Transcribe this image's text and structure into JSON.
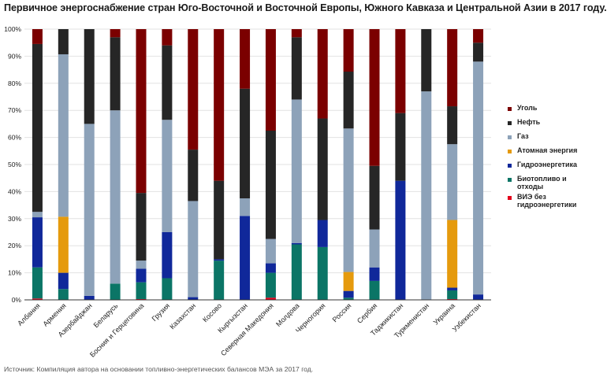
{
  "title": "Первичное энергоснабжение стран Юго-Восточной и Восточной Европы, Южного Кавказа и Центральной Азии в 2017 году.",
  "source": "Источник: Компиляция автора на основании топливно-энергетических балансов МЭА за 2017 год.",
  "colors": {
    "coal": "#7b0000",
    "oil": "#262626",
    "gas": "#8da2b9",
    "nuclear": "#e59a0d",
    "hydro": "#10289a",
    "bio": "#0b7566",
    "renew": "#e3001b"
  },
  "legend": [
    {
      "key": "coal",
      "label": "Уголь"
    },
    {
      "key": "oil",
      "label": "Нефть"
    },
    {
      "key": "gas",
      "label": "Газ"
    },
    {
      "key": "nuclear",
      "label": "Атомная энергия"
    },
    {
      "key": "hydro",
      "label": "Гидроэнергетика"
    },
    {
      "key": "bio",
      "label": "Биотопливо и отходы"
    },
    {
      "key": "renew",
      "label": "ВИЭ без гидроэнергетики"
    }
  ],
  "chart_data": {
    "type": "bar",
    "stacked": true,
    "ylim": [
      0,
      100
    ],
    "yticks": [
      "0%",
      "10%",
      "20%",
      "30%",
      "40%",
      "50%",
      "60%",
      "70%",
      "80%",
      "90%",
      "100%"
    ],
    "categories": [
      "Албания",
      "Армения",
      "Азербайджан",
      "Беларусь",
      "Босния и Герцеговина",
      "Грузия",
      "Казахстан",
      "Косово",
      "Кыргызстан",
      "Северная Македония",
      "Молдова",
      "Черногория",
      "Россия",
      "Сербия",
      "Таджикистан",
      "Туркменистан",
      "Украина",
      "Узбекистан"
    ],
    "series": [
      {
        "key": "renew",
        "name": "ВИЭ без гидроэнергетики",
        "values": [
          0.5,
          0,
          0,
          0,
          0.3,
          0,
          0,
          0,
          0,
          0.8,
          0,
          0,
          0,
          0,
          0,
          0,
          0.3,
          0
        ]
      },
      {
        "key": "bio",
        "name": "Биотопливо и отходы",
        "values": [
          11.5,
          4,
          0,
          6,
          6.2,
          8,
          0,
          14.5,
          0,
          9.2,
          20.5,
          19.5,
          0.8,
          7,
          0,
          0,
          3.2,
          0
        ]
      },
      {
        "key": "hydro",
        "name": "Гидроэнергетика",
        "values": [
          18.5,
          6,
          1.5,
          0,
          5,
          17,
          1,
          0.5,
          31,
          3.5,
          0.5,
          10,
          2.5,
          5,
          44,
          0,
          1,
          2
        ]
      },
      {
        "key": "nuclear",
        "name": "Атомная энергия",
        "values": [
          0,
          20.7,
          0,
          0,
          0,
          0,
          0,
          0,
          0,
          0,
          0,
          0,
          7,
          0,
          0,
          0,
          25,
          0
        ]
      },
      {
        "key": "gas",
        "name": "Газ",
        "values": [
          2,
          60,
          63.5,
          64,
          3,
          41.5,
          35.5,
          0,
          6.5,
          9,
          53,
          0,
          53,
          14,
          0,
          77,
          28,
          86
        ]
      },
      {
        "key": "oil",
        "name": "Нефть",
        "values": [
          62,
          9.3,
          35,
          27,
          25,
          27.5,
          19,
          29,
          40.5,
          40,
          23,
          37.5,
          21,
          23.5,
          25,
          23,
          14,
          7
        ]
      },
      {
        "key": "coal",
        "name": "Уголь",
        "values": [
          5.5,
          0,
          0,
          3,
          60.5,
          6,
          44.5,
          56,
          22,
          37.5,
          3,
          33,
          15.7,
          50.5,
          31,
          0,
          28.5,
          5
        ]
      }
    ]
  }
}
